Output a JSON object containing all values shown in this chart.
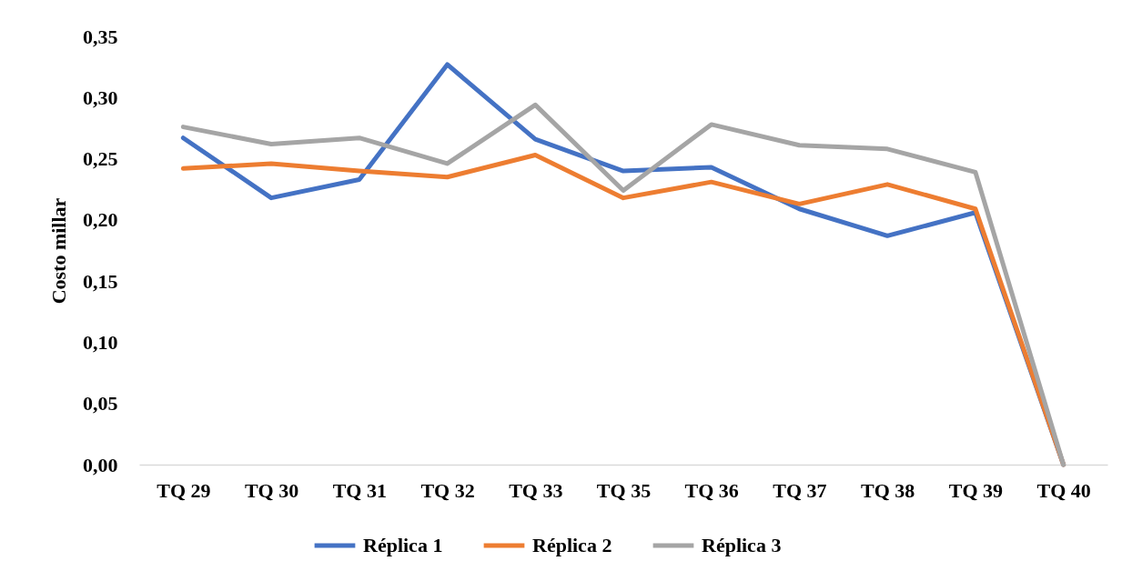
{
  "chart_data": {
    "type": "line",
    "ylabel": "Costo millar",
    "categories": [
      "TQ 29",
      "TQ 30",
      "TQ 31",
      "TQ 32",
      "TQ 33",
      "TQ 35",
      "TQ 36",
      "TQ 37",
      "TQ 38",
      "TQ 39",
      "TQ 40"
    ],
    "series": [
      {
        "name": "Réplica 1",
        "color": "#4472c4",
        "values": [
          0.267,
          0.218,
          0.233,
          0.327,
          0.266,
          0.24,
          0.243,
          0.209,
          0.187,
          0.206,
          0
        ]
      },
      {
        "name": "Réplica 2",
        "color": "#ed7d31",
        "values": [
          0.242,
          0.246,
          0.24,
          0.235,
          0.253,
          0.218,
          0.231,
          0.213,
          0.229,
          0.209,
          0
        ]
      },
      {
        "name": "Réplica 3",
        "color": "#a5a5a5",
        "values": [
          0.276,
          0.262,
          0.267,
          0.246,
          0.294,
          0.224,
          0.278,
          0.261,
          0.258,
          0.239,
          0
        ]
      }
    ],
    "ylim": [
      0,
      0.35
    ],
    "yticks": [
      {
        "value": 0,
        "label": "0,00"
      },
      {
        "value": 0.05,
        "label": "0,05"
      },
      {
        "value": 0.1,
        "label": "0,10"
      },
      {
        "value": 0.15,
        "label": "0,15"
      },
      {
        "value": 0.2,
        "label": "0,20"
      },
      {
        "value": 0.25,
        "label": "0,25"
      },
      {
        "value": 0.3,
        "label": "0,30"
      },
      {
        "value": 0.35,
        "label": "0,35"
      }
    ],
    "grid": false,
    "legend": "bottom"
  }
}
